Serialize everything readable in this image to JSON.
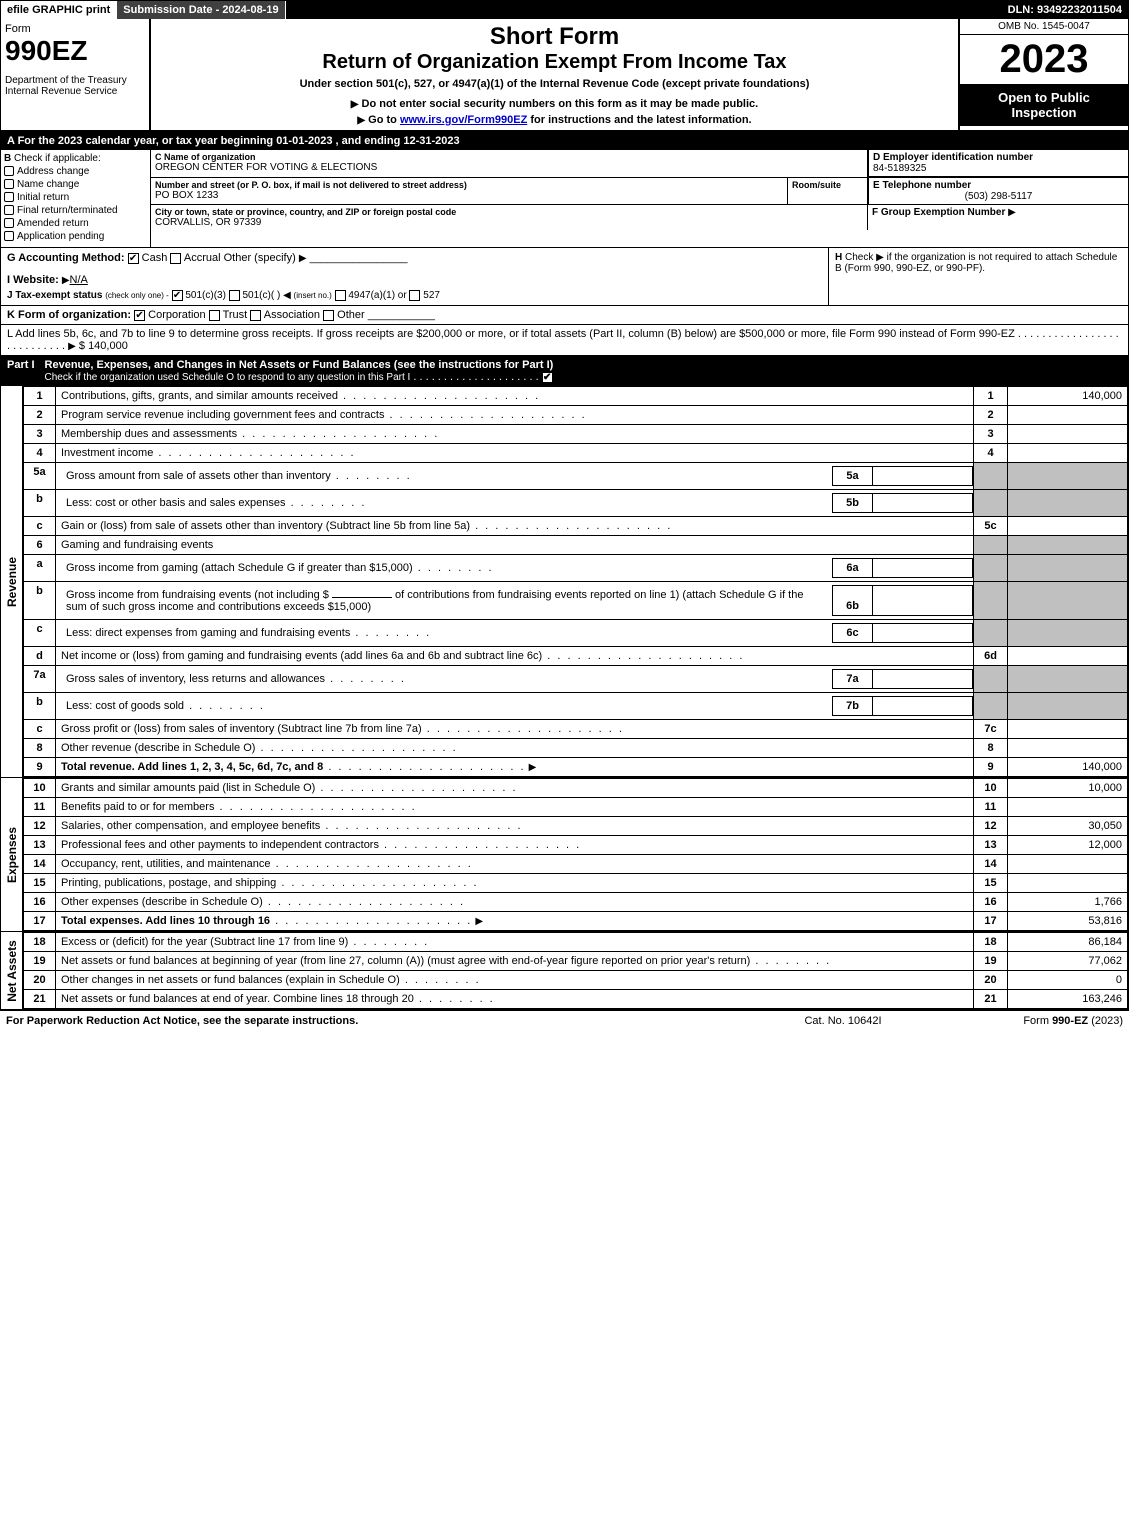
{
  "top": {
    "efile": "efile GRAPHIC print",
    "submission": "Submission Date - 2024-08-19",
    "dln": "DLN: 93492232011504"
  },
  "header": {
    "form_word": "Form",
    "form_no": "990EZ",
    "dept": "Department of the Treasury\nInternal Revenue Service",
    "short_form": "Short Form",
    "title2": "Return of Organization Exempt From Income Tax",
    "under": "Under section 501(c), 527, or 4947(a)(1) of the Internal Revenue Code (except private foundations)",
    "donot": "Do not enter social security numbers on this form as it may be made public.",
    "goto_prefix": "Go to ",
    "goto_link": "www.irs.gov/Form990EZ",
    "goto_suffix": " for instructions and the latest information.",
    "omb": "OMB No. 1545-0047",
    "year": "2023",
    "open": "Open to Public Inspection"
  },
  "row_a": "A  For the 2023 calendar year, or tax year beginning 01-01-2023 , and ending 12-31-2023",
  "section_b": {
    "label": "B",
    "sublabel": "Check if applicable:",
    "items": [
      {
        "label": "Address change",
        "checked": false
      },
      {
        "label": "Name change",
        "checked": false
      },
      {
        "label": "Initial return",
        "checked": false
      },
      {
        "label": "Final return/terminated",
        "checked": false
      },
      {
        "label": "Amended return",
        "checked": false
      },
      {
        "label": "Application pending",
        "checked": false
      }
    ]
  },
  "section_c": {
    "name_label": "C Name of organization",
    "name_val": "OREGON CENTER FOR VOTING & ELECTIONS",
    "street_label": "Number and street (or P. O. box, if mail is not delivered to street address)",
    "street_val": "PO BOX 1233",
    "room_label": "Room/suite",
    "room_val": "",
    "city_label": "City or town, state or province, country, and ZIP or foreign postal code",
    "city_val": "CORVALLIS, OR  97339"
  },
  "section_de": {
    "d_label": "D Employer identification number",
    "d_val": "84-5189325",
    "e_label": "E Telephone number",
    "e_val": "(503) 298-5117",
    "f_label": "F Group Exemption Number",
    "f_val": ""
  },
  "row_g": {
    "label": "G Accounting Method:",
    "cash": "Cash",
    "accrual": "Accrual",
    "other": "Other (specify)"
  },
  "row_h": {
    "label": "H",
    "text": "Check ▶   if the organization is not required to attach Schedule B (Form 990, 990-EZ, or 990-PF)."
  },
  "row_i": {
    "label": "I Website:",
    "val": "N/A"
  },
  "row_j": {
    "label": "J Tax-exempt status",
    "note": "(check only one) -",
    "opt1": "501(c)(3)",
    "opt2": "501(c)(  )",
    "opt2_note": "(insert no.)",
    "opt3": "4947(a)(1) or",
    "opt4": "527"
  },
  "row_k": {
    "label": "K Form of organization:",
    "corp": "Corporation",
    "trust": "Trust",
    "assoc": "Association",
    "other": "Other"
  },
  "row_l": {
    "text": "L Add lines 5b, 6c, and 7b to line 9 to determine gross receipts. If gross receipts are $200,000 or more, or if total assets (Part II, column (B) below) are $500,000 or more, file Form 990 instead of Form 990-EZ",
    "val": "$ 140,000"
  },
  "part1": {
    "label": "Part I",
    "title": "Revenue, Expenses, and Changes in Net Assets or Fund Balances (see the instructions for Part I)",
    "check_line": "Check if the organization used Schedule O to respond to any question in this Part I"
  },
  "revenue": {
    "side": "Revenue",
    "rows": [
      {
        "n": "1",
        "text": "Contributions, gifts, grants, and similar amounts received",
        "ln": "1",
        "amt": "140,000"
      },
      {
        "n": "2",
        "text": "Program service revenue including government fees and contracts",
        "ln": "2",
        "amt": ""
      },
      {
        "n": "3",
        "text": "Membership dues and assessments",
        "ln": "3",
        "amt": ""
      },
      {
        "n": "4",
        "text": "Investment income",
        "ln": "4",
        "amt": ""
      }
    ],
    "r5a": {
      "n": "5a",
      "text": "Gross amount from sale of assets other than inventory",
      "sub": "5a"
    },
    "r5b": {
      "n": "b",
      "text": "Less: cost or other basis and sales expenses",
      "sub": "5b"
    },
    "r5c": {
      "n": "c",
      "text": "Gain or (loss) from sale of assets other than inventory (Subtract line 5b from line 5a)",
      "ln": "5c"
    },
    "r6": {
      "n": "6",
      "text": "Gaming and fundraising events"
    },
    "r6a": {
      "n": "a",
      "text": "Gross income from gaming (attach Schedule G if greater than $15,000)",
      "sub": "6a"
    },
    "r6b": {
      "n": "b",
      "text1": "Gross income from fundraising events (not including $",
      "text2": "of contributions from fundraising events reported on line 1) (attach Schedule G if the sum of such gross income and contributions exceeds $15,000)",
      "sub": "6b"
    },
    "r6c": {
      "n": "c",
      "text": "Less: direct expenses from gaming and fundraising events",
      "sub": "6c"
    },
    "r6d": {
      "n": "d",
      "text": "Net income or (loss) from gaming and fundraising events (add lines 6a and 6b and subtract line 6c)",
      "ln": "6d"
    },
    "r7a": {
      "n": "7a",
      "text": "Gross sales of inventory, less returns and allowances",
      "sub": "7a"
    },
    "r7b": {
      "n": "b",
      "text": "Less: cost of goods sold",
      "sub": "7b"
    },
    "r7c": {
      "n": "c",
      "text": "Gross profit or (loss) from sales of inventory (Subtract line 7b from line 7a)",
      "ln": "7c"
    },
    "r8": {
      "n": "8",
      "text": "Other revenue (describe in Schedule O)",
      "ln": "8"
    },
    "r9": {
      "n": "9",
      "text": "Total revenue. Add lines 1, 2, 3, 4, 5c, 6d, 7c, and 8",
      "ln": "9",
      "amt": "140,000"
    }
  },
  "expenses": {
    "side": "Expenses",
    "rows": [
      {
        "n": "10",
        "text": "Grants and similar amounts paid (list in Schedule O)",
        "ln": "10",
        "amt": "10,000"
      },
      {
        "n": "11",
        "text": "Benefits paid to or for members",
        "ln": "11",
        "amt": ""
      },
      {
        "n": "12",
        "text": "Salaries, other compensation, and employee benefits",
        "ln": "12",
        "amt": "30,050"
      },
      {
        "n": "13",
        "text": "Professional fees and other payments to independent contractors",
        "ln": "13",
        "amt": "12,000"
      },
      {
        "n": "14",
        "text": "Occupancy, rent, utilities, and maintenance",
        "ln": "14",
        "amt": ""
      },
      {
        "n": "15",
        "text": "Printing, publications, postage, and shipping",
        "ln": "15",
        "amt": ""
      },
      {
        "n": "16",
        "text": "Other expenses (describe in Schedule O)",
        "ln": "16",
        "amt": "1,766"
      },
      {
        "n": "17",
        "text": "Total expenses. Add lines 10 through 16",
        "ln": "17",
        "amt": "53,816",
        "bold": true
      }
    ]
  },
  "netassets": {
    "side": "Net Assets",
    "rows": [
      {
        "n": "18",
        "text": "Excess or (deficit) for the year (Subtract line 17 from line 9)",
        "ln": "18",
        "amt": "86,184"
      },
      {
        "n": "19",
        "text": "Net assets or fund balances at beginning of year (from line 27, column (A)) (must agree with end-of-year figure reported on prior year's return)",
        "ln": "19",
        "amt": "77,062"
      },
      {
        "n": "20",
        "text": "Other changes in net assets or fund balances (explain in Schedule O)",
        "ln": "20",
        "amt": "0"
      },
      {
        "n": "21",
        "text": "Net assets or fund balances at end of year. Combine lines 18 through 20",
        "ln": "21",
        "amt": "163,246"
      }
    ]
  },
  "footer": {
    "left": "For Paperwork Reduction Act Notice, see the separate instructions.",
    "mid": "Cat. No. 10642I",
    "right_prefix": "Form ",
    "right_form": "990-EZ",
    "right_suffix": " (2023)"
  }
}
